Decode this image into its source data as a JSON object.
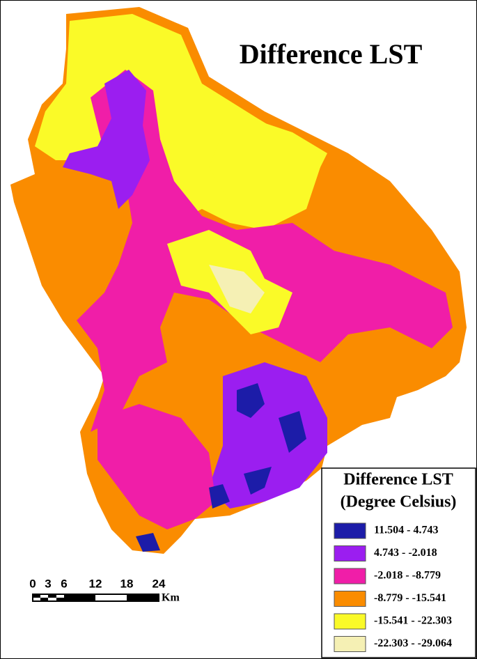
{
  "title": "Difference LST",
  "legend": {
    "title": "Difference LST",
    "subtitle": "(Degree Celsius)",
    "classes": [
      {
        "label": "11.504 - 4.743",
        "color": "#1c1ca8"
      },
      {
        "label": "4.743 - -2.018",
        "color": "#9b1ef0"
      },
      {
        "label": "-2.018 - -8.779",
        "color": "#f01ea8"
      },
      {
        "label": "-8.779 - -15.541",
        "color": "#fa8c00"
      },
      {
        "label": "-15.541 - -22.303",
        "color": "#fafa28"
      },
      {
        "label": "-22.303 - -29.064",
        "color": "#f5f0b4"
      }
    ]
  },
  "scale_bar": {
    "ticks": [
      "0",
      "3",
      "6",
      "12",
      "18",
      "24"
    ],
    "unit": "Km"
  }
}
